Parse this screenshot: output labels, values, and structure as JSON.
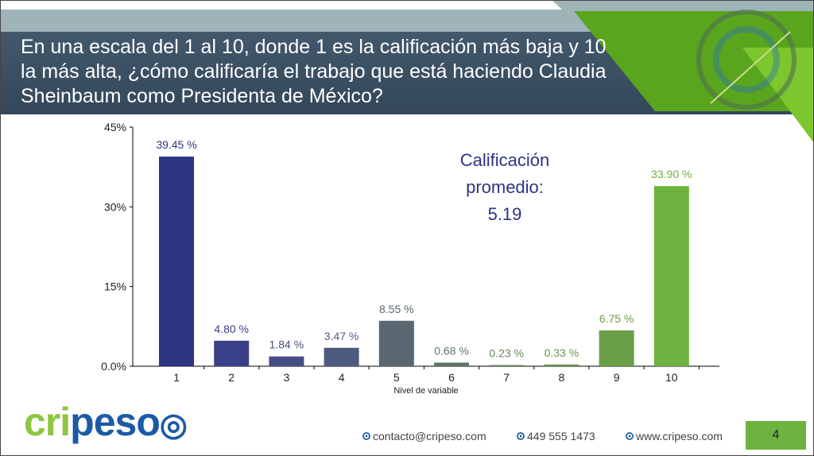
{
  "header": {
    "title": "En una escala del 1 al 10, donde 1 es la calificación más baja y 10 la más alta, ¿cómo calificaría el trabajo que está haciendo Claudia Sheinbaum como Presidenta de México?"
  },
  "annotation": {
    "line1": "Calificación",
    "line2": "promedio:",
    "value": "5.19"
  },
  "chart_data": {
    "type": "bar",
    "title": "",
    "xlabel": "Nivel de variable",
    "ylabel": "",
    "categories": [
      "1",
      "2",
      "3",
      "4",
      "5",
      "6",
      "7",
      "8",
      "9",
      "10"
    ],
    "values": [
      39.45,
      4.8,
      1.84,
      3.47,
      8.55,
      0.68,
      0.23,
      0.33,
      6.75,
      33.9
    ],
    "data_labels": [
      "39.45 %",
      "4.80 %",
      "1.84 %",
      "3.47 %",
      "8.55 %",
      "0.68 %",
      "0.23 %",
      "0.33 %",
      "6.75 %",
      "33.90 %"
    ],
    "colors": [
      "#2e3382",
      "#3a4088",
      "#464d86",
      "#4f5a80",
      "#5a6770",
      "#5f7566",
      "#65885a",
      "#6a954f",
      "#6a9e48",
      "#6db33f"
    ],
    "yticks": [
      "0.0%",
      "15%",
      "30%",
      "45%"
    ],
    "ytick_values": [
      0,
      15,
      30,
      45
    ],
    "ylim": [
      0,
      45
    ],
    "grid": false
  },
  "logo": {
    "text": "cripeso"
  },
  "footer": {
    "email": "contacto@cripeso.com",
    "phone": "449 555 1473",
    "web": "www.cripeso.com",
    "page": "4"
  }
}
